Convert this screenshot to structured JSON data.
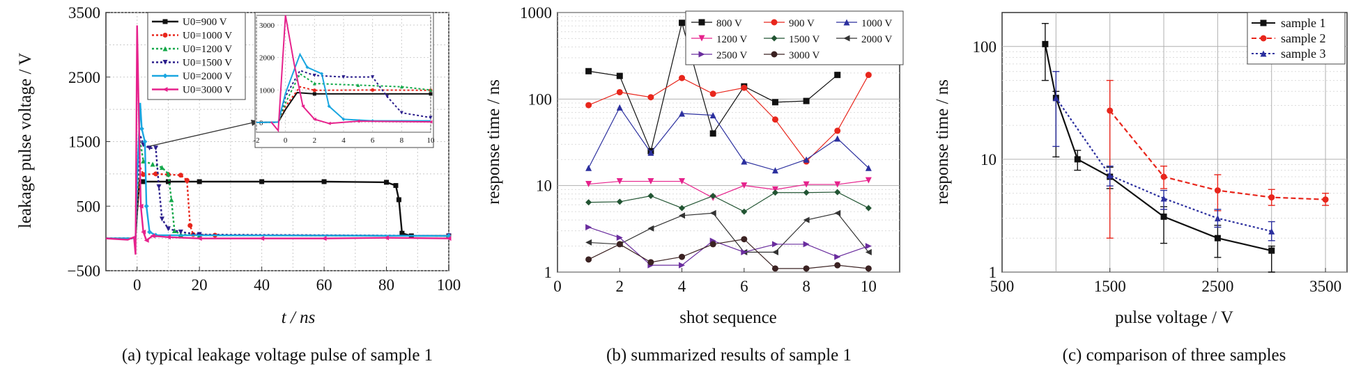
{
  "figure": {
    "captions": [
      "(a) typical leakage voltage pulse of sample 1",
      "(b) summarized results of sample 1",
      "(c) comparison of three samples"
    ]
  },
  "chart_data": [
    {
      "type": "line",
      "xlabel": "t / ns",
      "ylabel": "leakage pulse voltage / V",
      "xlim": [
        -10,
        100
      ],
      "ylim": [
        -500,
        3500
      ],
      "xticks": [
        0,
        20,
        40,
        60,
        80,
        100
      ],
      "yticks": [
        -500,
        500,
        1500,
        2500,
        3500
      ],
      "grid": true,
      "legend_position": "top-left",
      "series": [
        {
          "name": "U0=900 V",
          "color": "#111111",
          "marker": "square",
          "dash": "solid",
          "x": [
            -10,
            -2,
            -0.5,
            0,
            0.8,
            2,
            10,
            20,
            40,
            60,
            80,
            83,
            84,
            85,
            88,
            100
          ],
          "y": [
            0,
            0,
            10,
            400,
            920,
            880,
            880,
            880,
            880,
            880,
            870,
            820,
            600,
            80,
            40,
            40
          ]
        },
        {
          "name": "U0=1000 V",
          "color": "#e8261c",
          "marker": "circle",
          "dash": "dotted",
          "x": [
            -10,
            -2,
            -0.5,
            0,
            1,
            2,
            6,
            10,
            14,
            16,
            17,
            18,
            25,
            100
          ],
          "y": [
            0,
            0,
            10,
            500,
            1100,
            990,
            1000,
            990,
            980,
            900,
            200,
            60,
            50,
            40
          ]
        },
        {
          "name": "U0=1200 V",
          "color": "#13a84a",
          "marker": "triangle",
          "dash": "dotted",
          "x": [
            -10,
            -2,
            -0.5,
            0,
            1,
            2,
            5,
            8,
            10,
            11,
            12,
            14,
            20,
            100
          ],
          "y": [
            0,
            0,
            10,
            600,
            1500,
            1200,
            1150,
            1100,
            1000,
            600,
            120,
            60,
            50,
            40
          ]
        },
        {
          "name": "U0=1500 V",
          "color": "#2c1f8c",
          "marker": "triangle-down",
          "dash": "dotted",
          "x": [
            -10,
            -2,
            -0.5,
            0,
            1,
            2,
            4,
            6,
            7,
            8,
            10,
            14,
            20,
            100
          ],
          "y": [
            0,
            0,
            10,
            800,
            1600,
            1450,
            1400,
            1400,
            800,
            300,
            150,
            100,
            60,
            40
          ]
        },
        {
          "name": "U0=2000 V",
          "color": "#1aa6e0",
          "marker": "diamond",
          "dash": "solid",
          "x": [
            -10,
            -2,
            -0.5,
            0,
            1,
            1.5,
            2.5,
            3,
            4,
            6,
            100
          ],
          "y": [
            0,
            0,
            10,
            900,
            2100,
            1700,
            1500,
            500,
            100,
            50,
            40
          ]
        },
        {
          "name": "U0=3000 V",
          "color": "#e6228c",
          "marker": "triangle-left",
          "dash": "solid",
          "x": [
            -10,
            -3,
            -1,
            -0.5,
            0,
            0.6,
            1.2,
            2,
            3,
            5,
            10,
            20,
            40,
            60,
            80,
            100
          ],
          "y": [
            0,
            -20,
            20,
            -250,
            3300,
            1800,
            500,
            100,
            -30,
            40,
            20,
            0,
            0,
            0,
            10,
            0
          ]
        }
      ],
      "inset": {
        "xlim": [
          -2,
          10
        ],
        "ylim": [
          -300,
          3300
        ],
        "xticks": [
          -2,
          0,
          2,
          4,
          6,
          8,
          10
        ],
        "yticks": [
          0,
          1000,
          2000,
          3000
        ]
      }
    },
    {
      "type": "line",
      "xlabel": "shot sequence",
      "ylabel": "response time / ns",
      "xlim": [
        0,
        11
      ],
      "ylim": [
        1,
        1000
      ],
      "yscale": "log",
      "xticks": [
        0,
        2,
        4,
        6,
        8,
        10
      ],
      "yticks": [
        1,
        10,
        100,
        1000
      ],
      "grid": true,
      "legend_position": "top-right",
      "x": [
        1,
        2,
        3,
        4,
        5,
        6,
        7,
        8,
        9,
        10
      ],
      "series": [
        {
          "name": "800 V",
          "color": "#111111",
          "marker": "square",
          "values": [
            210,
            185,
            25,
            760,
            40,
            140,
            92,
            95,
            190,
            null
          ]
        },
        {
          "name": "900 V",
          "color": "#e8261c",
          "marker": "circle",
          "values": [
            85,
            120,
            105,
            175,
            115,
            135,
            58,
            19,
            43,
            190
          ]
        },
        {
          "name": "1000 V",
          "color": "#2b2f9e",
          "marker": "triangle",
          "values": [
            16,
            80,
            24,
            68,
            65,
            19,
            15,
            20,
            35,
            16
          ]
        },
        {
          "name": "1200 V",
          "color": "#e6228c",
          "marker": "triangle-down",
          "values": [
            10.4,
            11.2,
            11.2,
            11.2,
            7.2,
            10,
            9,
            10.3,
            10.3,
            11.5
          ]
        },
        {
          "name": "1500 V",
          "color": "#225533",
          "marker": "diamond",
          "values": [
            6.4,
            6.5,
            7.6,
            5.5,
            7.6,
            5,
            8.3,
            8.3,
            8.4,
            5.5
          ]
        },
        {
          "name": "2000 V",
          "color": "#333333",
          "marker": "triangle-left",
          "values": [
            2.2,
            2.1,
            3.2,
            4.5,
            4.8,
            1.7,
            1.7,
            4,
            4.8,
            1.7
          ]
        },
        {
          "name": "2500 V",
          "color": "#6a2d9e",
          "marker": "triangle-right",
          "values": [
            3.3,
            2.5,
            1.2,
            1.2,
            2.3,
            1.7,
            2.1,
            2.1,
            1.5,
            2
          ]
        },
        {
          "name": "3000 V",
          "color": "#3b2222",
          "marker": "circle",
          "values": [
            1.4,
            2.1,
            1.3,
            1.5,
            2.1,
            2.4,
            1.1,
            1.1,
            1.2,
            1.1
          ]
        }
      ]
    },
    {
      "type": "line",
      "xlabel": "pulse voltage / V",
      "ylabel": "response time / ns",
      "xlim": [
        500,
        3700
      ],
      "ylim": [
        1,
        200
      ],
      "yscale": "log",
      "xticks": [
        500,
        1500,
        2500,
        3500
      ],
      "yticks": [
        1,
        10,
        100
      ],
      "grid": true,
      "legend_position": "top-right",
      "series": [
        {
          "name": "sample 1",
          "color": "#111111",
          "marker": "square",
          "dash": "solid",
          "x": [
            900,
            1000,
            1200,
            1500,
            2000,
            2500,
            3000
          ],
          "y": [
            105,
            35,
            10,
            7,
            3.1,
            2,
            1.55
          ],
          "err_low": [
            50,
            10.5,
            8,
            5.5,
            1.8,
            1.35,
            1.0
          ],
          "err_high": [
            160,
            40,
            12,
            8.5,
            3.8,
            2.6,
            1.7
          ]
        },
        {
          "name": "sample 2",
          "color": "#e8261c",
          "marker": "circle",
          "dash": "dashed",
          "x": [
            1500,
            2000,
            2500,
            3000,
            3500
          ],
          "y": [
            27,
            7,
            5.3,
            4.6,
            4.4
          ],
          "err_low": [
            2,
            5.5,
            3.5,
            3.9,
            3.9
          ],
          "err_high": [
            50,
            8.7,
            7.3,
            5.4,
            5
          ]
        },
        {
          "name": "sample 3",
          "color": "#2b2f9e",
          "marker": "triangle",
          "dash": "dotted",
          "x": [
            1000,
            1500,
            2000,
            2500,
            3000
          ],
          "y": [
            35,
            7.2,
            4.5,
            3,
            2.3
          ],
          "err_low": [
            13,
            5.8,
            3.6,
            2.5,
            1.9
          ],
          "err_high": [
            60,
            8.7,
            5.3,
            3.6,
            2.8
          ]
        }
      ]
    }
  ]
}
